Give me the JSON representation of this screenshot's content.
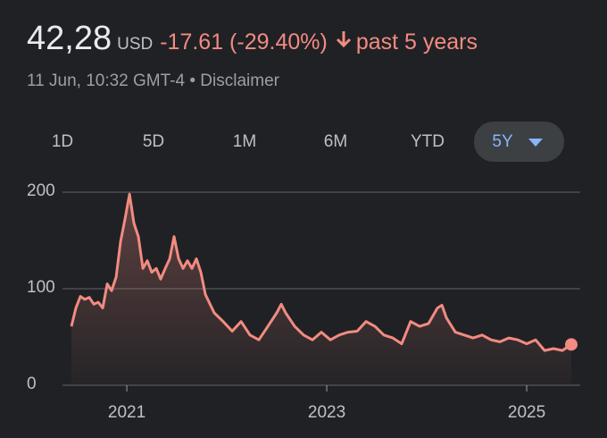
{
  "header": {
    "price": "42,28",
    "currency": "USD",
    "change": "-17.61 (-29.40%)",
    "period": "past 5 years",
    "timestamp": "11 Jun, 10:32 GMT-4 • Disclaimer"
  },
  "tabs": [
    "1D",
    "5D",
    "1M",
    "6M",
    "YTD",
    "5Y"
  ],
  "chart_data": {
    "type": "line",
    "color": "#f28b82",
    "grid": true,
    "x": [
      2020.446,
      2020.491,
      2020.536,
      2020.58,
      2020.625,
      2020.67,
      2020.714,
      2020.759,
      2020.804,
      2020.848,
      2020.893,
      2020.938,
      2020.982,
      2021.027,
      2021.071,
      2021.116,
      2021.161,
      2021.205,
      2021.25,
      2021.295,
      2021.339,
      2021.384,
      2021.429,
      2021.473,
      2021.518,
      2021.563,
      2021.607,
      2021.652,
      2021.696,
      2021.741,
      2021.786,
      2021.875,
      2021.964,
      2022.054,
      2022.143,
      2022.232,
      2022.321,
      2022.411,
      2022.5,
      2022.545,
      2022.589,
      2022.679,
      2022.768,
      2022.857,
      2022.946,
      2023.036,
      2023.125,
      2023.214,
      2023.304,
      2023.393,
      2023.482,
      2023.571,
      2023.661,
      2023.75,
      2023.839,
      2023.929,
      2024.018,
      2024.107,
      2024.152,
      2024.196,
      2024.286,
      2024.375,
      2024.464,
      2024.554,
      2024.643,
      2024.732,
      2024.821,
      2024.911,
      2025.0,
      2025.089,
      2025.179,
      2025.268,
      2025.357,
      2025.446
    ],
    "values": [
      61,
      80,
      92,
      89,
      91,
      84,
      86,
      80,
      105,
      98,
      112,
      149,
      172,
      198,
      168,
      154,
      121,
      129,
      117,
      121,
      110,
      121,
      131,
      154,
      131,
      121,
      129,
      121,
      131,
      117,
      94,
      75,
      66,
      56,
      66,
      52,
      47,
      61,
      75,
      84,
      75,
      61,
      52,
      47,
      55,
      47,
      52,
      55,
      56,
      66,
      61,
      52,
      49,
      43,
      66,
      61,
      64,
      80,
      83,
      70,
      55,
      52,
      49,
      52,
      47,
      45,
      49,
      47,
      43,
      47,
      36,
      38,
      36,
      42.28
    ],
    "xlim": [
      2020.446,
      2025.446
    ],
    "xticks": [
      2021,
      2023,
      2025
    ],
    "ylim": [
      0,
      200
    ],
    "yticks": [
      0,
      100,
      200
    ]
  }
}
